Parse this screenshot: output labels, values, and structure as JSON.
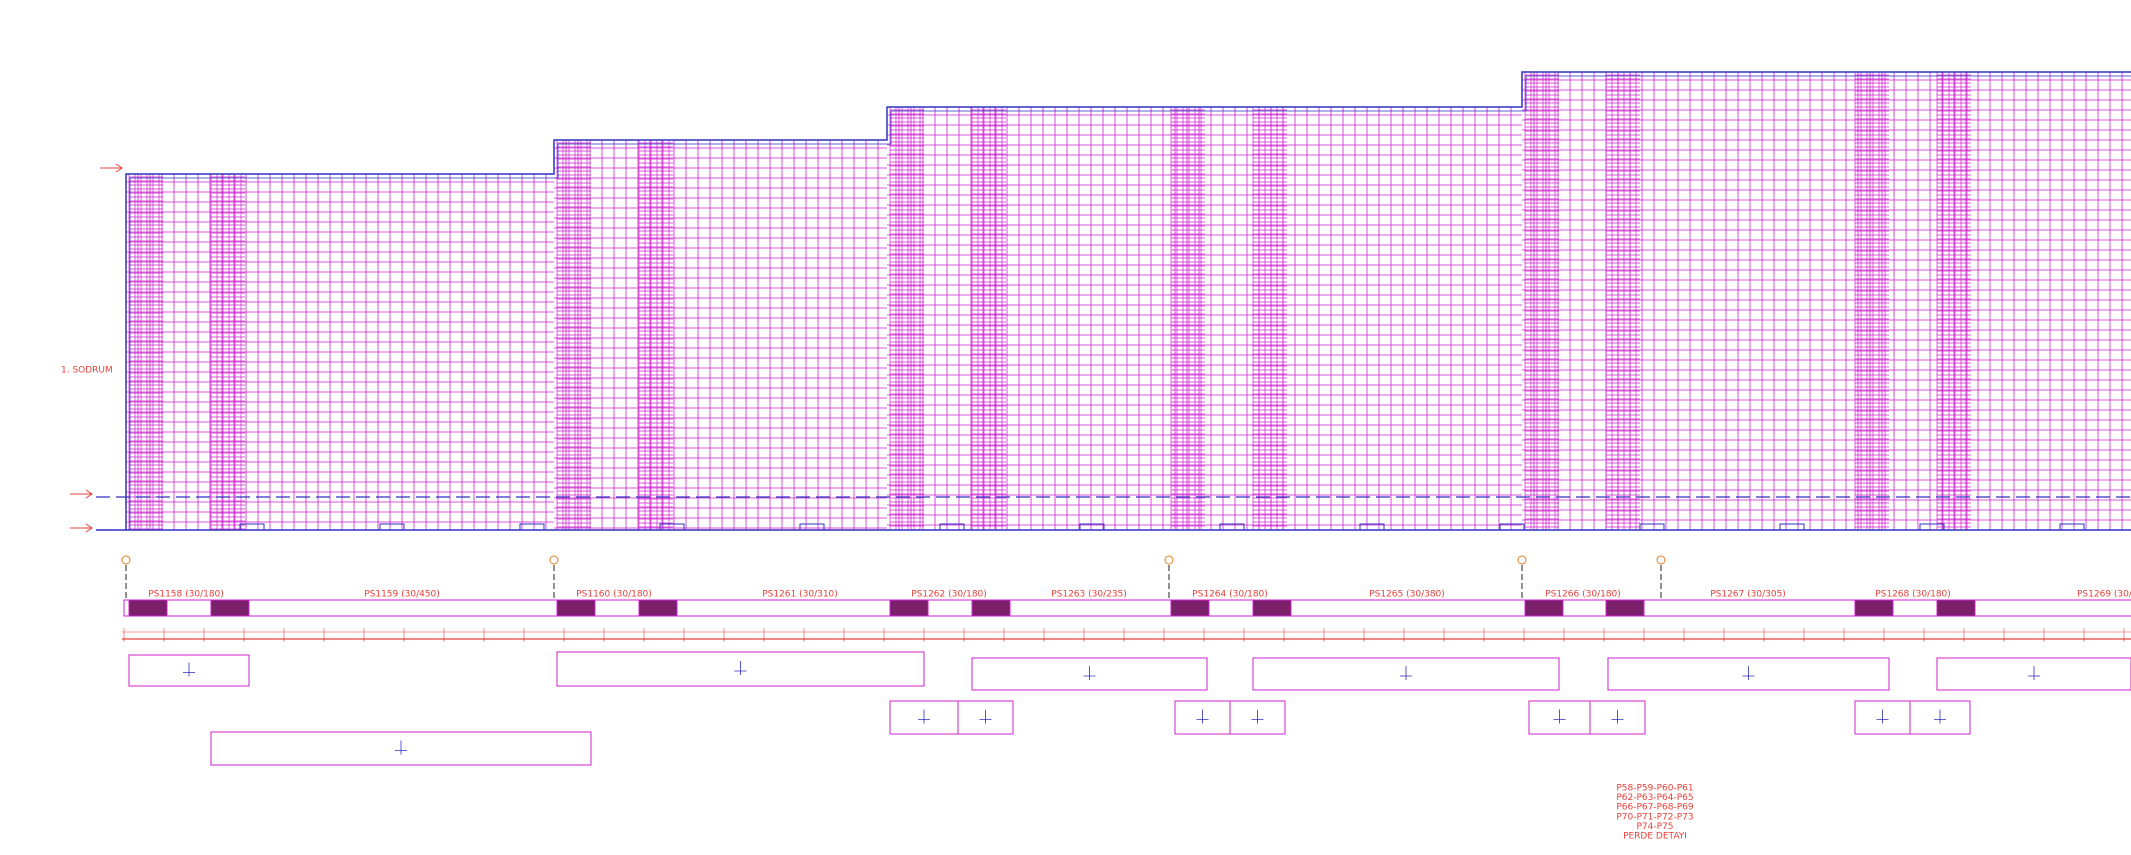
{
  "level_label": "1. SODRUM",
  "panels": [
    {
      "label": "PS1158 (30/180)"
    },
    {
      "label": "PS1159 (30/450)"
    },
    {
      "label": "PS1160 (30/180)"
    },
    {
      "label": "PS1261 (30/310)"
    },
    {
      "label": "PS1262 (30/180)"
    },
    {
      "label": "PS1263 (30/235)"
    },
    {
      "label": "PS1264 (30/180)"
    },
    {
      "label": "PS1265 (30/380)"
    },
    {
      "label": "PS1266 (30/180)"
    },
    {
      "label": "PS1267 (30/305)"
    },
    {
      "label": "PS1268 (30/180)"
    },
    {
      "label": "PS1269 (30/"
    }
  ],
  "note": {
    "lines": [
      "P58-P59-P60-P61",
      "P62-P63-P64-P65",
      "P66-P67-P68-P69",
      "P70-P71-P72-P73",
      "P74-P75",
      "PERDE DETAYI"
    ]
  }
}
